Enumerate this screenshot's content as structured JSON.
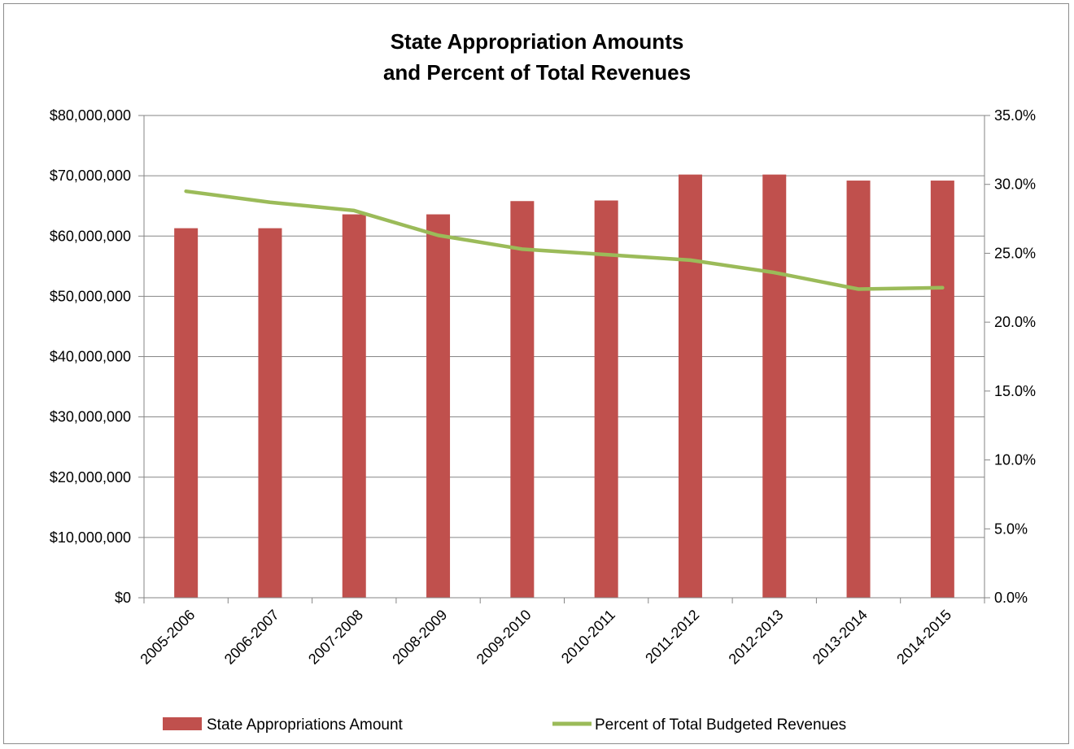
{
  "colors": {
    "bar": "#c0504d",
    "line": "#9bbb59",
    "grid": "#868686",
    "axis": "#868686"
  },
  "chart_data": {
    "type": "bar",
    "title_lines": [
      "State Appropriation Amounts",
      "and Percent of Total Revenues"
    ],
    "categories": [
      "2005-2006",
      "2006-2007",
      "2007-2008",
      "2008-2009",
      "2009-2010",
      "2010-2011",
      "2011-2012",
      "2012-2013",
      "2013-2014",
      "2014-2015"
    ],
    "series": [
      {
        "name": "State Appropriations Amount",
        "type": "bar",
        "axis": "left",
        "values": [
          61300000,
          61300000,
          63600000,
          63600000,
          65800000,
          65900000,
          70200000,
          70200000,
          69200000,
          69200000
        ]
      },
      {
        "name": "Percent of Total Budgeted Revenues",
        "type": "line",
        "axis": "right",
        "values": [
          29.5,
          28.7,
          28.1,
          26.3,
          25.3,
          24.9,
          24.5,
          23.6,
          22.4,
          22.5
        ]
      }
    ],
    "y_left": {
      "ylim": [
        0,
        80000000
      ],
      "ticks": [
        "$0",
        "$10,000,000",
        "$20,000,000",
        "$30,000,000",
        "$40,000,000",
        "$50,000,000",
        "$60,000,000",
        "$70,000,000",
        "$80,000,000"
      ]
    },
    "y_right": {
      "ylim": [
        0,
        35
      ],
      "ticks": [
        "0.0%",
        "5.0%",
        "10.0%",
        "15.0%",
        "20.0%",
        "25.0%",
        "30.0%",
        "35.0%"
      ]
    },
    "grid": true,
    "legend": "bottom"
  }
}
